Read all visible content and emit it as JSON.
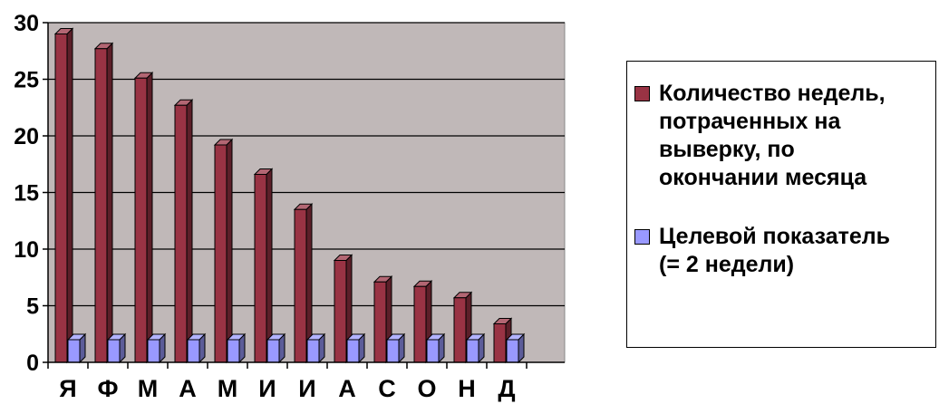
{
  "chart_data": {
    "type": "bar",
    "categories": [
      "Я",
      "Ф",
      "М",
      "А",
      "М",
      "И",
      "И",
      "А",
      "С",
      "О",
      "Н",
      "Д"
    ],
    "series": [
      {
        "name": "Количество недель,\nпотраченных на\nвыверку, по\nокончании месяца",
        "color": "#993344",
        "values": [
          29,
          27.7,
          25.1,
          22.7,
          19.2,
          16.6,
          13.5,
          9,
          7.1,
          6.7,
          5.7,
          3.4
        ]
      },
      {
        "name": "Целевой показатель\n(= 2 недели)",
        "color": "#9999ff",
        "values": [
          2,
          2,
          2,
          2,
          2,
          2,
          2,
          2,
          2,
          2,
          2,
          2
        ]
      }
    ],
    "y_ticks": [
      "0",
      "5",
      "10",
      "15",
      "20",
      "25",
      "30"
    ],
    "ylim": [
      0,
      30
    ],
    "grid": true,
    "plot_background": "#c0b8b8",
    "legend_position": "right"
  }
}
